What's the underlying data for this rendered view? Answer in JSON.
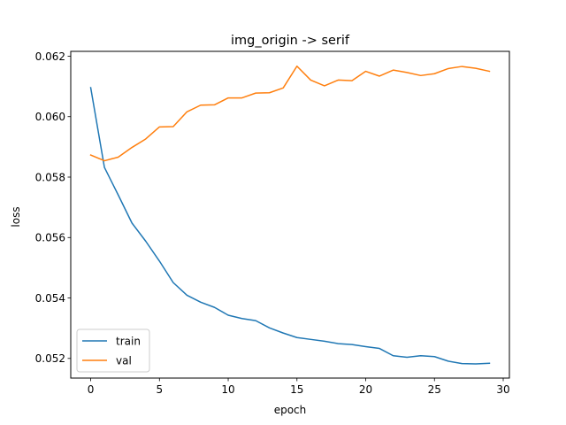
{
  "chart_data": {
    "type": "line",
    "title": "img_origin -> serif",
    "xlabel": "epoch",
    "ylabel": "loss",
    "xlim": [
      -1.45,
      30.45
    ],
    "ylim": [
      0.05135,
      0.06216
    ],
    "xticks": [
      0,
      5,
      10,
      15,
      20,
      25,
      30
    ],
    "yticks": [
      0.052,
      0.054,
      0.056,
      0.058,
      0.06,
      0.062
    ],
    "ytick_labels": [
      "0.052",
      "0.054",
      "0.056",
      "0.058",
      "0.060",
      "0.062"
    ],
    "grid": false,
    "legend_position": "lower-left",
    "x": [
      0,
      1,
      2,
      3,
      4,
      5,
      6,
      7,
      8,
      9,
      10,
      11,
      12,
      13,
      14,
      15,
      16,
      17,
      18,
      19,
      20,
      21,
      22,
      23,
      24,
      25,
      26,
      27,
      28,
      29
    ],
    "series": [
      {
        "name": "train",
        "color": "#1f77b4",
        "values": [
          0.06096,
          0.05832,
          0.05741,
          0.05648,
          0.05588,
          0.05522,
          0.05451,
          0.05409,
          0.05386,
          0.05369,
          0.05343,
          0.05332,
          0.05325,
          0.05301,
          0.05284,
          0.05269,
          0.05263,
          0.05257,
          0.05249,
          0.05246,
          0.05239,
          0.05233,
          0.05209,
          0.05204,
          0.05209,
          0.05206,
          0.05191,
          0.05183,
          0.05182,
          0.05184
        ]
      },
      {
        "name": "val",
        "color": "#ff7f0e",
        "values": [
          0.05873,
          0.05854,
          0.05866,
          0.05898,
          0.05926,
          0.05966,
          0.05967,
          0.06016,
          0.06038,
          0.06039,
          0.06062,
          0.06062,
          0.06078,
          0.06079,
          0.06095,
          0.06167,
          0.06121,
          0.06102,
          0.06121,
          0.06119,
          0.0615,
          0.06134,
          0.06154,
          0.06146,
          0.06136,
          0.06142,
          0.06159,
          0.06166,
          0.0616,
          0.0615
        ]
      }
    ]
  }
}
